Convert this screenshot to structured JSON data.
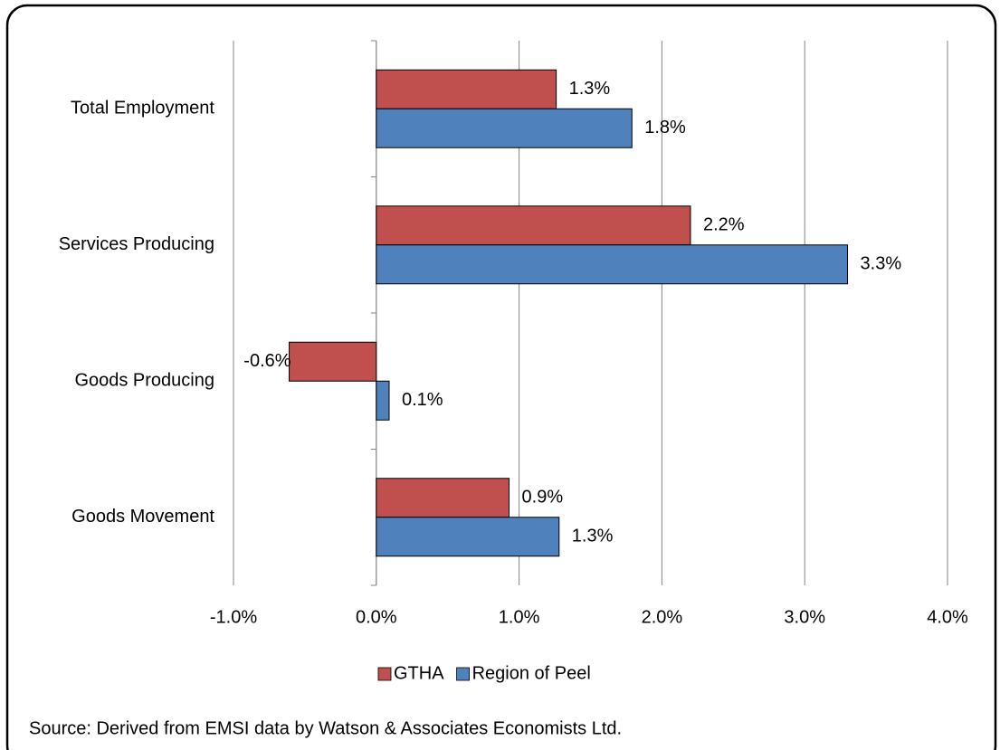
{
  "chart_data": {
    "type": "bar",
    "orientation": "horizontal",
    "categories": [
      "Total Employment",
      "Services Producing",
      "Goods Producing",
      "Goods Movement"
    ],
    "series": [
      {
        "name": "GTHA",
        "color": "#c0504d",
        "values": [
          1.26,
          2.2,
          -0.61,
          0.93
        ],
        "value_labels": [
          "1.3%",
          "2.2%",
          "-0.6%",
          "0.9%"
        ]
      },
      {
        "name": "Region of Peel",
        "color": "#4f81bd",
        "values": [
          1.79,
          3.3,
          0.09,
          1.28
        ],
        "value_labels": [
          "1.8%",
          "3.3%",
          "0.1%",
          "1.3%"
        ]
      }
    ],
    "xlim": [
      -1,
      4
    ],
    "xticks": [
      {
        "value": -1,
        "label": "-1.0%"
      },
      {
        "value": 0,
        "label": "0.0%"
      },
      {
        "value": 1,
        "label": "1.0%"
      },
      {
        "value": 2,
        "label": "2.0%"
      },
      {
        "value": 3,
        "label": "3.0%"
      },
      {
        "value": 4,
        "label": "4.0%"
      }
    ],
    "grid": true,
    "legend": "bottom",
    "source": "Source:  Derived from EMSI data by Watson & Associates Economists Ltd."
  }
}
